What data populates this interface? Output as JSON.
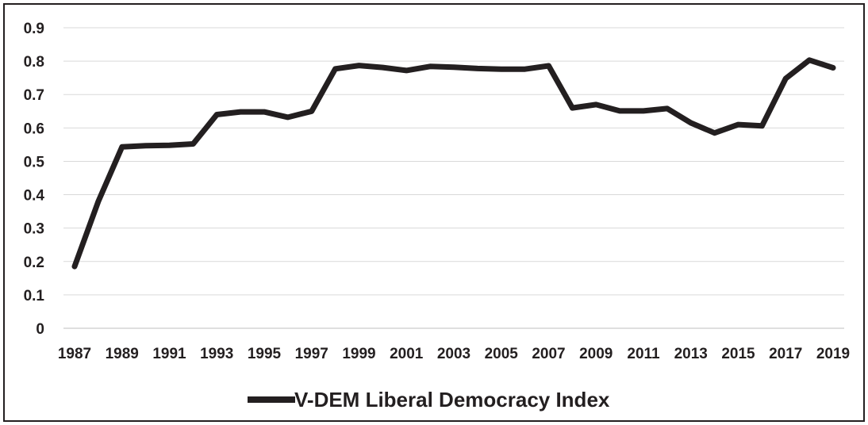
{
  "chart_data": {
    "type": "line",
    "title": "",
    "xlabel": "",
    "ylabel": "",
    "x": [
      1987,
      1988,
      1989,
      1990,
      1991,
      1992,
      1993,
      1994,
      1995,
      1996,
      1997,
      1998,
      1999,
      2000,
      2001,
      2002,
      2003,
      2004,
      2005,
      2006,
      2007,
      2008,
      2009,
      2010,
      2011,
      2012,
      2013,
      2014,
      2015,
      2016,
      2017,
      2018,
      2019
    ],
    "xticks": [
      "1987",
      "1989",
      "1991",
      "1993",
      "1995",
      "1997",
      "1999",
      "2001",
      "2003",
      "2005",
      "2007",
      "2009",
      "2011",
      "2013",
      "2015",
      "2017",
      "2019"
    ],
    "yticks": [
      "0",
      "0.1",
      "0.2",
      "0.3",
      "0.4",
      "0.5",
      "0.6",
      "0.7",
      "0.8",
      "0.9"
    ],
    "ylim": [
      0,
      0.9
    ],
    "grid": true,
    "legend_position": "bottom-center",
    "series": [
      {
        "name": "V-DEM Liberal Democracy Index",
        "color": "#231f20",
        "values": [
          0.185,
          0.38,
          0.543,
          0.547,
          0.548,
          0.552,
          0.64,
          0.648,
          0.648,
          0.632,
          0.65,
          0.777,
          0.787,
          0.781,
          0.772,
          0.784,
          0.782,
          0.778,
          0.776,
          0.776,
          0.786,
          0.66,
          0.67,
          0.651,
          0.651,
          0.658,
          0.615,
          0.585,
          0.61,
          0.606,
          0.748,
          0.803,
          0.78
        ]
      }
    ]
  }
}
